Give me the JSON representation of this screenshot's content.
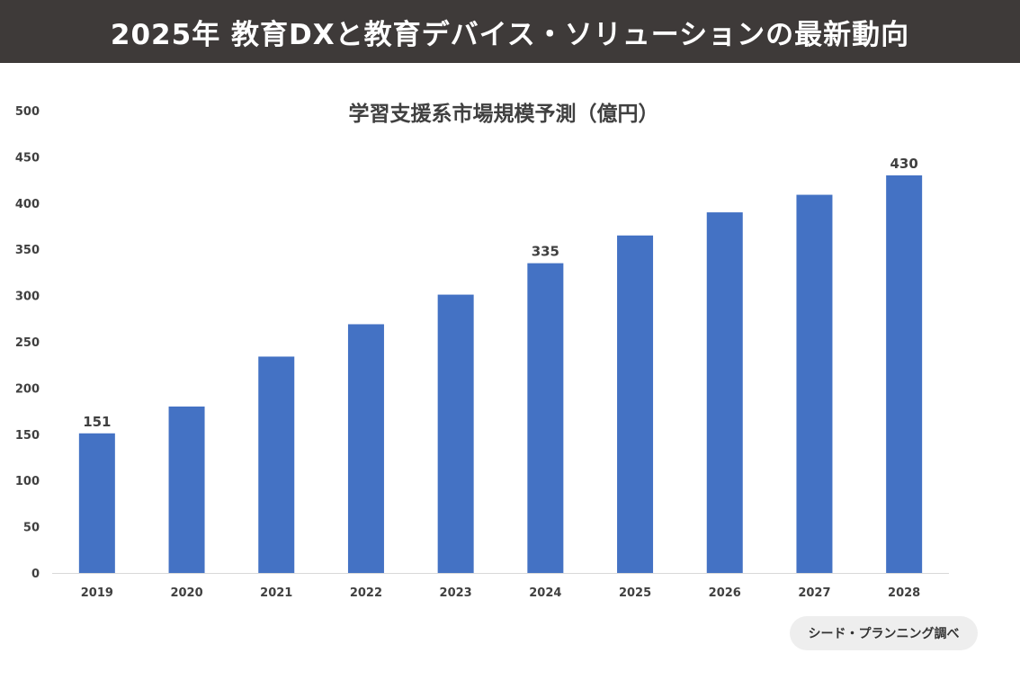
{
  "header": {
    "title": "2025年 教育DXと教育デバイス・ソリューションの最新動向"
  },
  "source_note": "シード・プランニング調べ",
  "colors": {
    "header_bg": "#3e3a39",
    "bar": "#4472c4",
    "axis": "#d9d9d9",
    "text": "#404040",
    "pill_bg": "#eeeeee"
  },
  "chart_data": {
    "type": "bar",
    "title": "学習支援系市場規模予測（億円）",
    "xlabel": "",
    "ylabel": "",
    "categories": [
      "2019",
      "2020",
      "2021",
      "2022",
      "2023",
      "2024",
      "2025",
      "2026",
      "2027",
      "2028"
    ],
    "values": [
      151,
      180,
      234,
      269,
      301,
      335,
      365,
      390,
      409,
      430
    ],
    "data_labels": [
      {
        "category": "2019",
        "text": "151"
      },
      {
        "category": "2024",
        "text": "335"
      },
      {
        "category": "2028",
        "text": "430"
      }
    ],
    "ylim": [
      0,
      500
    ],
    "yticks": [
      "0",
      "50",
      "100",
      "150",
      "200",
      "250",
      "300",
      "350",
      "400",
      "450",
      "500"
    ],
    "grid": false,
    "legend": "none"
  }
}
